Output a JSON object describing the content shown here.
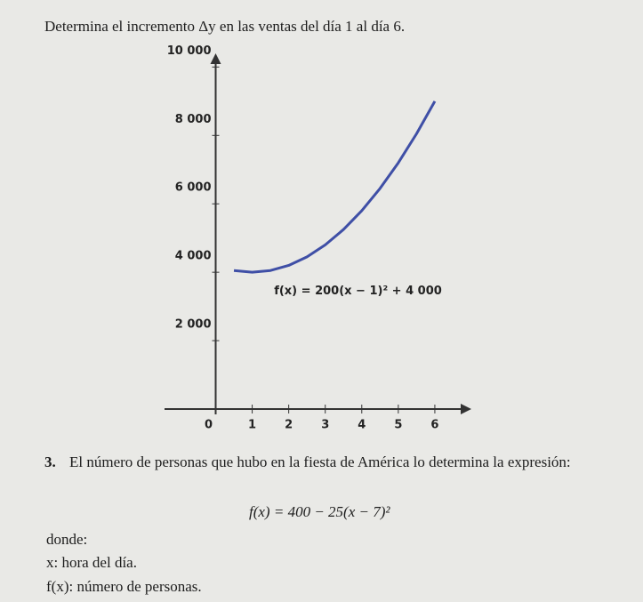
{
  "question": "Determina el incremento Δy en las ventas del día 1 al día 6.",
  "chart_data": {
    "type": "line",
    "annotation": "f(x) = 200(x − 1)² + 4 000",
    "x": [
      0.5,
      1,
      1.5,
      2,
      2.5,
      3,
      3.5,
      4,
      4.5,
      5,
      5.5,
      6
    ],
    "series": [
      {
        "color": "#3f4fa6",
        "values": [
          4050,
          4000,
          4050,
          4200,
          4450,
          4800,
          5250,
          5800,
          6450,
          7200,
          8050,
          9000
        ]
      }
    ],
    "xlim": [
      -1.4,
      7
    ],
    "xticks": [
      0,
      1,
      2,
      3,
      4,
      5,
      6
    ],
    "ylim": [
      0,
      10400
    ],
    "yticks": [
      {
        "value": 2000,
        "label": "2 000"
      },
      {
        "value": 4000,
        "label": "4 000"
      },
      {
        "value": 6000,
        "label": "6 000"
      },
      {
        "value": 8000,
        "label": "8 000"
      },
      {
        "value": 10000,
        "label": "10 000"
      }
    ]
  },
  "item": {
    "number": "3.",
    "text": "El número de personas que hubo en la fiesta de América lo determina la expresión:",
    "formula": "f(x) = 400 − 25(x − 7)²",
    "where": "donde:",
    "defs": [
      "x: hora del día.",
      "f(x): número de personas."
    ]
  }
}
